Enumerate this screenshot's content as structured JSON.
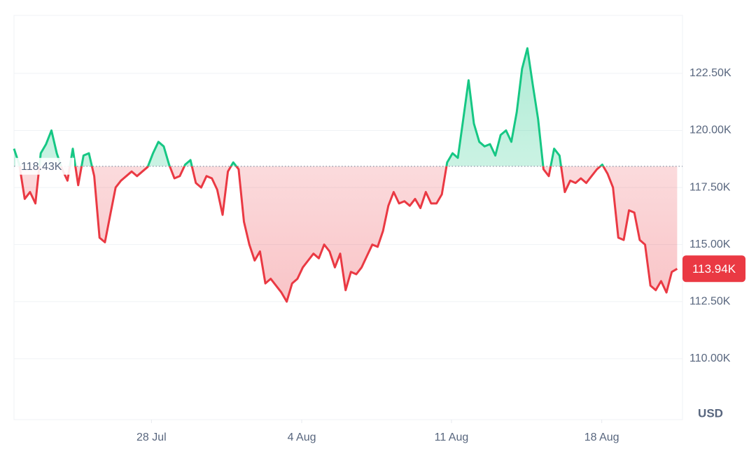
{
  "chart_data": {
    "type": "line",
    "values": [
      119200,
      118500,
      117000,
      117300,
      116800,
      119000,
      119400,
      120000,
      119000,
      118300,
      117800,
      119200,
      117600,
      118900,
      119000,
      118000,
      115300,
      115100,
      116300,
      117500,
      117800,
      118000,
      118200,
      118000,
      118200,
      118400,
      119000,
      119500,
      119300,
      118500,
      117900,
      118000,
      118500,
      118700,
      117700,
      117500,
      118000,
      117900,
      117400,
      116300,
      118200,
      118600,
      118300,
      116000,
      115000,
      114300,
      114700,
      113300,
      113500,
      113200,
      112900,
      112500,
      113300,
      113500,
      114000,
      114300,
      114600,
      114400,
      115000,
      114700,
      114000,
      114600,
      113000,
      113800,
      113700,
      114000,
      114500,
      115000,
      114900,
      115600,
      116700,
      117300,
      116800,
      116900,
      116700,
      117000,
      116600,
      117300,
      116800,
      116800,
      117200,
      118600,
      119000,
      118800,
      120500,
      122200,
      120300,
      119500,
      119300,
      119400,
      118900,
      119800,
      120000,
      119500,
      120800,
      122700,
      123600,
      122000,
      120500,
      118300,
      118000,
      119200,
      118900,
      117300,
      117800,
      117700,
      117900,
      117700,
      118000,
      118300,
      118500,
      118100,
      117500,
      115300,
      115200,
      116500,
      116400,
      115200,
      115000,
      113200,
      113000,
      113400,
      112900,
      113800,
      113940
    ],
    "color_up": "#16c784",
    "color_down": "#ea3943",
    "baseline": {
      "value": 118430,
      "label": "118.43K"
    },
    "current_price": {
      "value": 113940,
      "label": "113.94K"
    },
    "y_unit": "USD",
    "xlim": [
      0,
      125
    ],
    "xticks": [
      {
        "value": 25.7,
        "label": "28 Jul"
      },
      {
        "value": 53.8,
        "label": "4 Aug"
      },
      {
        "value": 81.8,
        "label": "11 Aug"
      },
      {
        "value": 109.9,
        "label": "18 Aug"
      }
    ],
    "ylim": [
      107330,
      125040
    ],
    "yticks": [
      {
        "value": 110000,
        "label": "110.00K"
      },
      {
        "value": 112500,
        "label": "112.50K"
      },
      {
        "value": 115000,
        "label": "115.00K"
      },
      {
        "value": 117500,
        "label": "117.50K"
      },
      {
        "value": 120000,
        "label": "120.00K"
      },
      {
        "value": 122500,
        "label": "122.50K"
      }
    ],
    "grid": true
  }
}
